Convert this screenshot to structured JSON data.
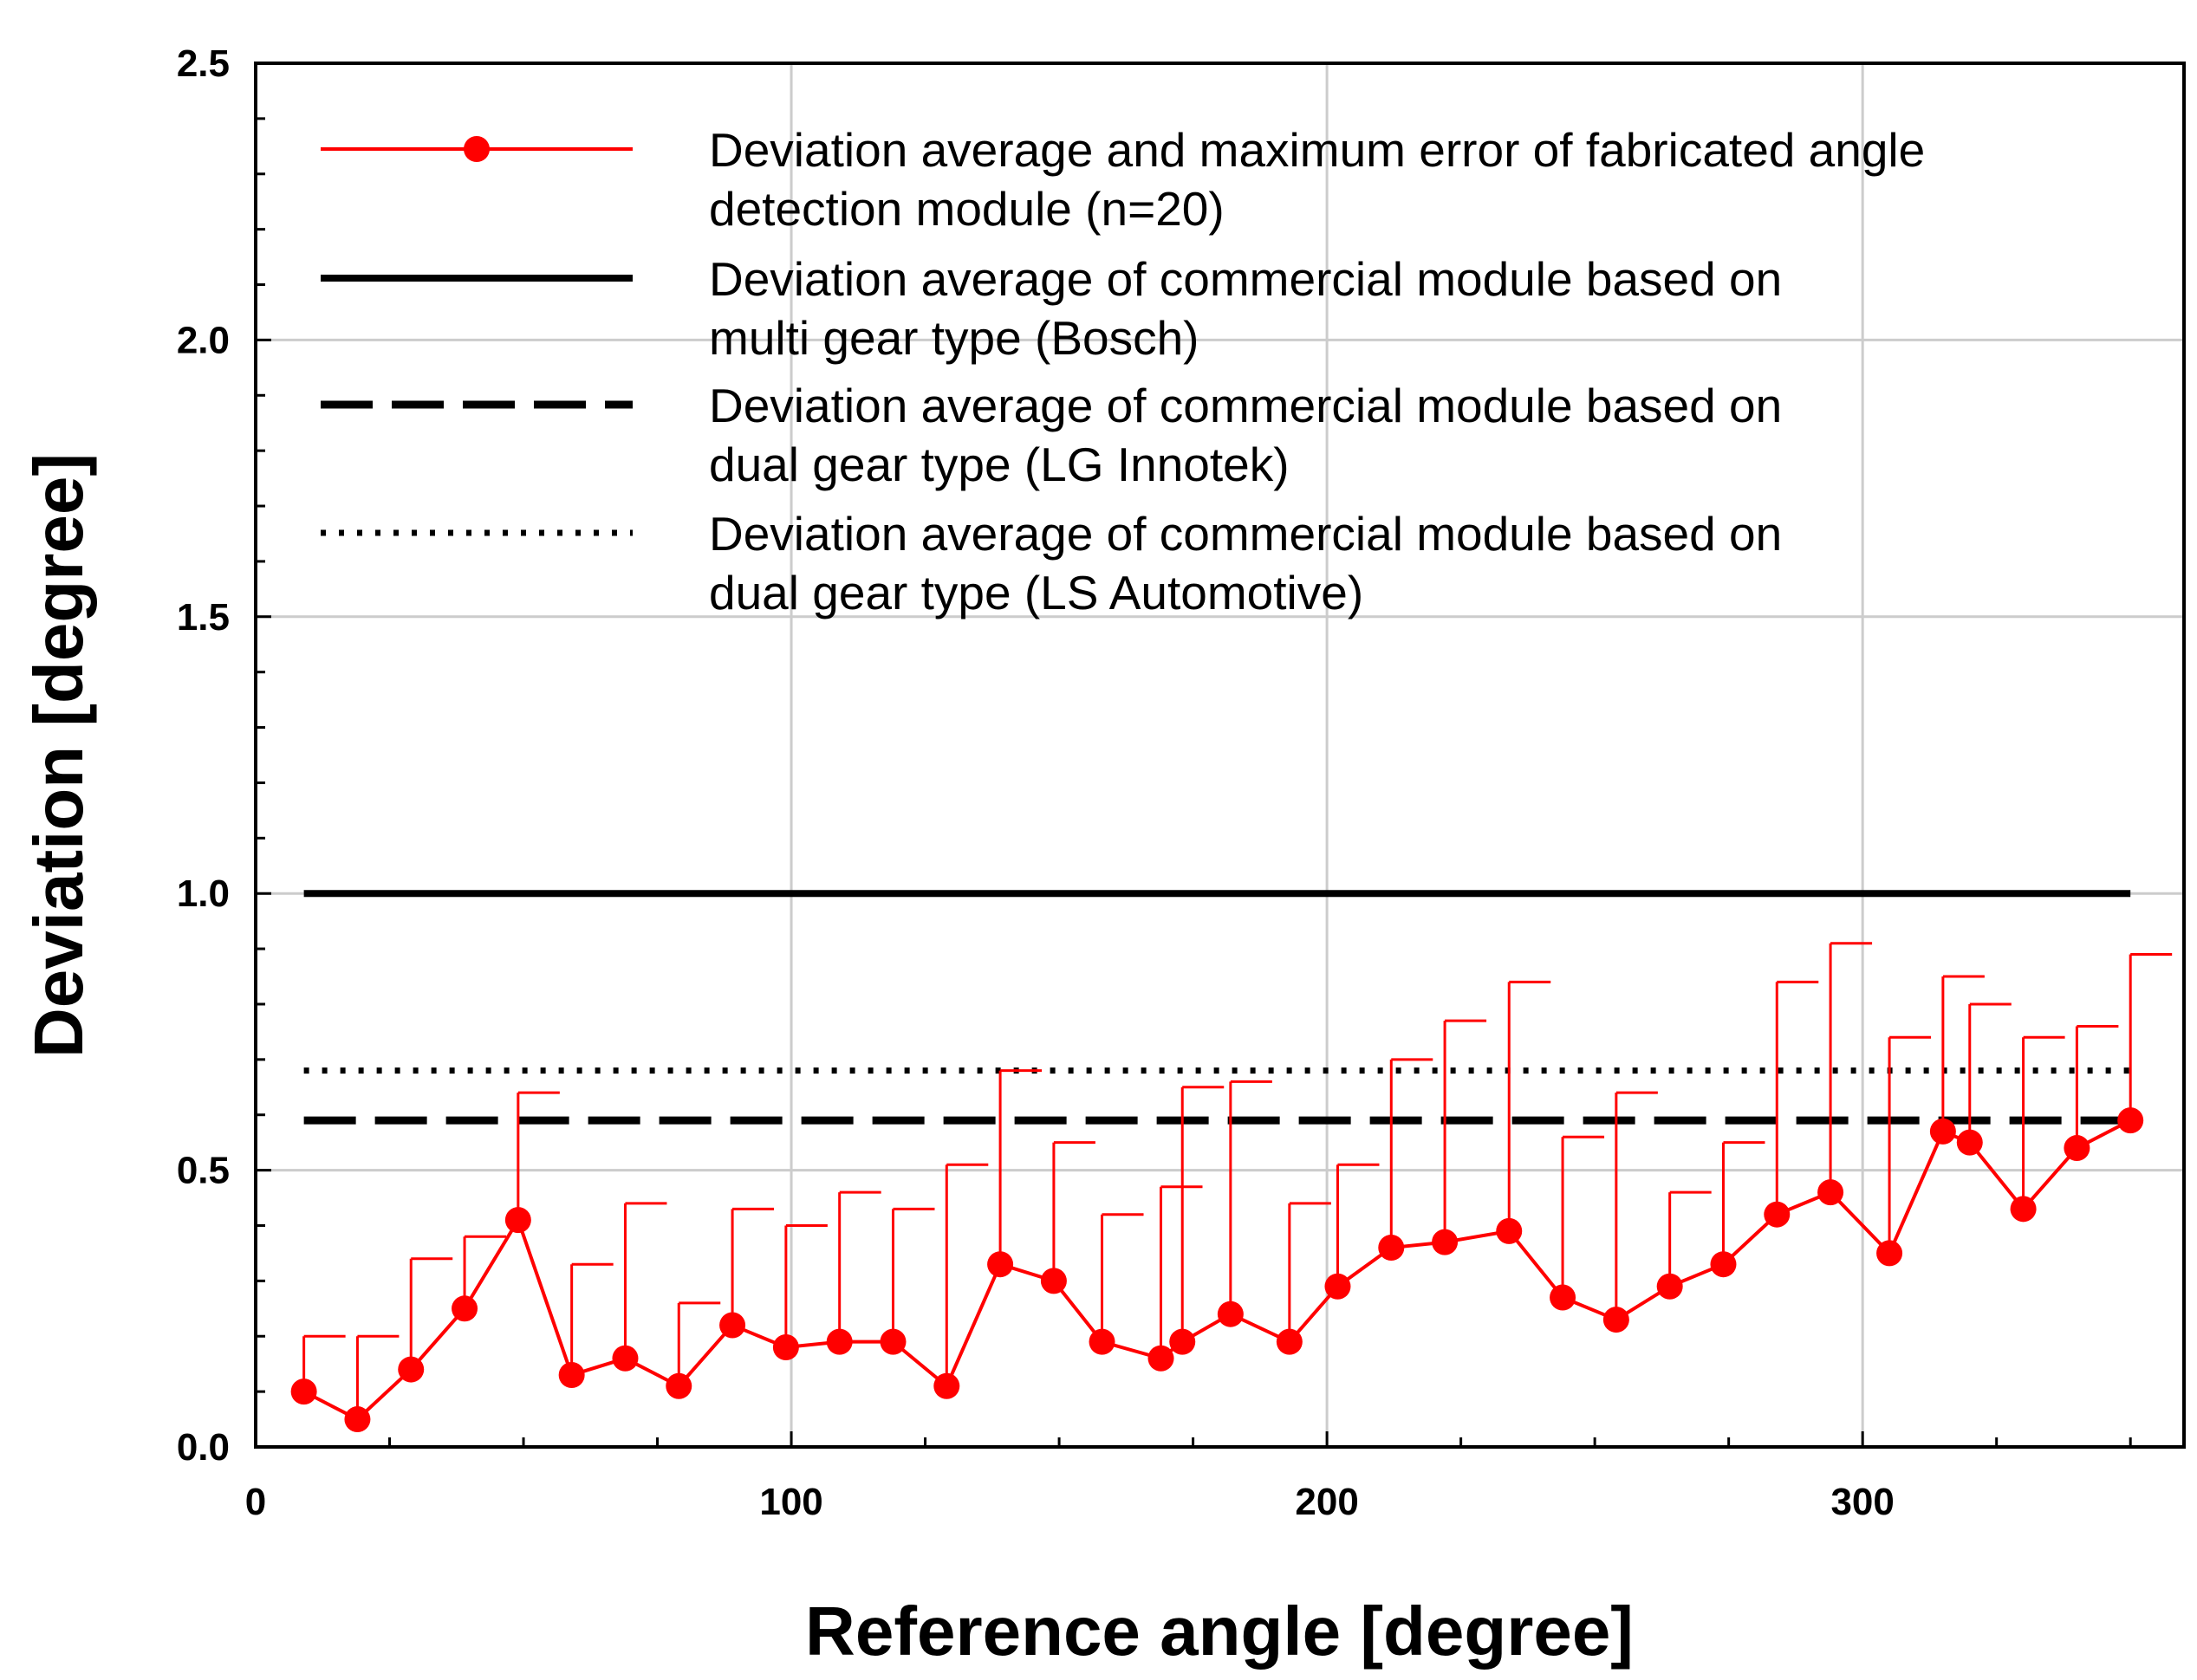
{
  "chart_data": {
    "type": "line",
    "xlabel": "Reference angle [degree]",
    "ylabel": "Deviation [degree]",
    "xlim": [
      0,
      360
    ],
    "ylim": [
      0,
      2.5
    ],
    "x_ticks": [
      "0",
      "100",
      "200",
      "300"
    ],
    "y_ticks": [
      "0.0",
      "0.5",
      "1.0",
      "1.5",
      "2.0",
      "2.5"
    ],
    "grid": true,
    "legend_position": "top-left",
    "series": [
      {
        "name_lines": [
          "Deviation average and maximum error of fabricated angle",
          "detection module (n=20)"
        ],
        "color": "#ff0000",
        "style": "line-marker-errorbar",
        "x": [
          9,
          19,
          29,
          39,
          49,
          59,
          69,
          79,
          89,
          99,
          109,
          119,
          129,
          139,
          149,
          158,
          169,
          173,
          182,
          193,
          202,
          212,
          222,
          234,
          244,
          254,
          264,
          274,
          284,
          294,
          305,
          315,
          320,
          330,
          340,
          350
        ],
        "y": [
          0.1,
          0.05,
          0.14,
          0.25,
          0.41,
          0.13,
          0.16,
          0.11,
          0.22,
          0.18,
          0.19,
          0.19,
          0.11,
          0.33,
          0.3,
          0.19,
          0.16,
          0.19,
          0.24,
          0.19,
          0.29,
          0.36,
          0.37,
          0.39,
          0.27,
          0.23,
          0.29,
          0.33,
          0.42,
          0.46,
          0.35,
          0.57,
          0.55,
          0.43,
          0.54,
          0.59
        ],
        "max": [
          0.2,
          0.2,
          0.34,
          0.38,
          0.64,
          0.33,
          0.44,
          0.26,
          0.43,
          0.4,
          0.46,
          0.43,
          0.51,
          0.68,
          0.55,
          0.42,
          0.47,
          0.65,
          0.66,
          0.44,
          0.51,
          0.7,
          0.77,
          0.84,
          0.56,
          0.64,
          0.46,
          0.55,
          0.84,
          0.91,
          0.74,
          0.85,
          0.8,
          0.74,
          0.76,
          0.89
        ]
      },
      {
        "name_lines": [
          "Deviation average of commercial module based on",
          "multi gear type (Bosch)"
        ],
        "color": "#000000",
        "style": "solid",
        "x": [
          9,
          350
        ],
        "y": [
          1.0,
          1.0
        ]
      },
      {
        "name_lines": [
          "Deviation average of commercial module based on",
          "dual gear type (LG Innotek)"
        ],
        "color": "#000000",
        "style": "dashed",
        "x": [
          9,
          350
        ],
        "y": [
          0.59,
          0.59
        ]
      },
      {
        "name_lines": [
          "Deviation average of commercial module based on",
          "dual gear type (LS Automotive)"
        ],
        "color": "#000000",
        "style": "dotted",
        "x": [
          9,
          350
        ],
        "y": [
          0.68,
          0.68
        ]
      }
    ]
  }
}
